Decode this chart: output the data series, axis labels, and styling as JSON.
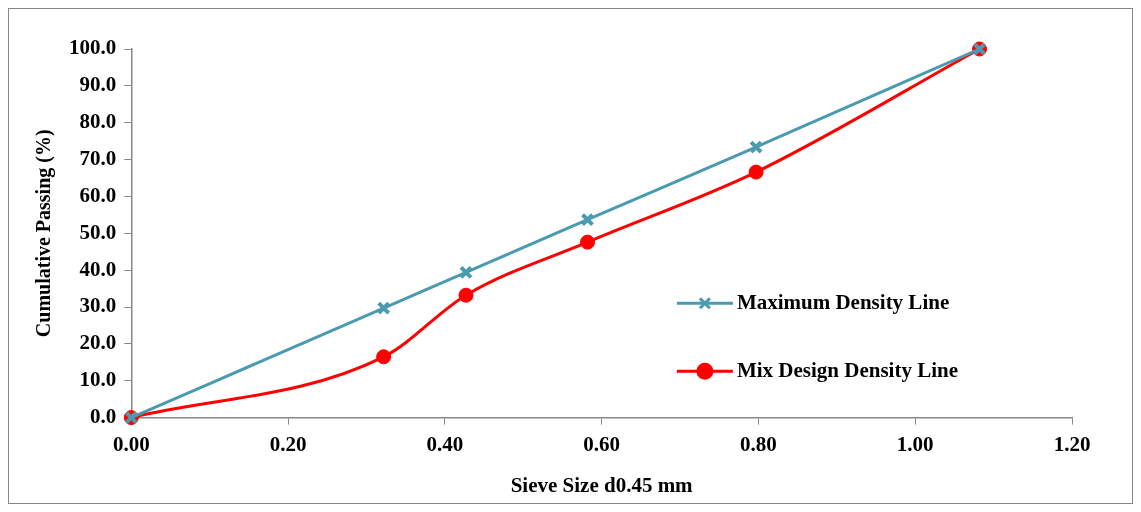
{
  "chart_data": {
    "type": "line",
    "xlabel": "Sieve Size d0.45 mm",
    "ylabel": "Cumulative Passing (%)",
    "series": [
      {
        "name": "Maximum Density Line",
        "color": "#4a9ab0",
        "marker": "cross",
        "x": [
          0,
          0.322,
          0.427,
          0.582,
          0.797,
          1.082
        ],
        "values": [
          0,
          29.7,
          39.4,
          53.7,
          73.4,
          100
        ]
      },
      {
        "name": "Mix Design Density Line",
        "color": "#ff0000",
        "marker": "circle",
        "x": [
          0,
          0.322,
          0.427,
          0.582,
          0.797,
          1.082
        ],
        "values": [
          0,
          16.5,
          33.2,
          47.6,
          66.6,
          100
        ]
      }
    ],
    "xlim": [
      0,
      1.2
    ],
    "xticks": [
      {
        "value": 0,
        "label": "0.00"
      },
      {
        "value": 0.2,
        "label": "0.20"
      },
      {
        "value": 0.4,
        "label": "0.40"
      },
      {
        "value": 0.6,
        "label": "0.60"
      },
      {
        "value": 0.8,
        "label": "0.80"
      },
      {
        "value": 1,
        "label": "1.00"
      },
      {
        "value": 1.2,
        "label": "1.20"
      }
    ],
    "ylim": [
      0,
      100
    ],
    "yticks": [
      {
        "value": 0,
        "label": "0.0"
      },
      {
        "value": 10,
        "label": "10.0"
      },
      {
        "value": 20,
        "label": "20.0"
      },
      {
        "value": 30,
        "label": "30.0"
      },
      {
        "value": 40,
        "label": "40.0"
      },
      {
        "value": 50,
        "label": "50.0"
      },
      {
        "value": 60,
        "label": "60.0"
      },
      {
        "value": 70,
        "label": "70.0"
      },
      {
        "value": 80,
        "label": "80.0"
      },
      {
        "value": 90,
        "label": "90.0"
      },
      {
        "value": 100,
        "label": "100.0"
      }
    ],
    "grid": false,
    "legend": "right"
  }
}
